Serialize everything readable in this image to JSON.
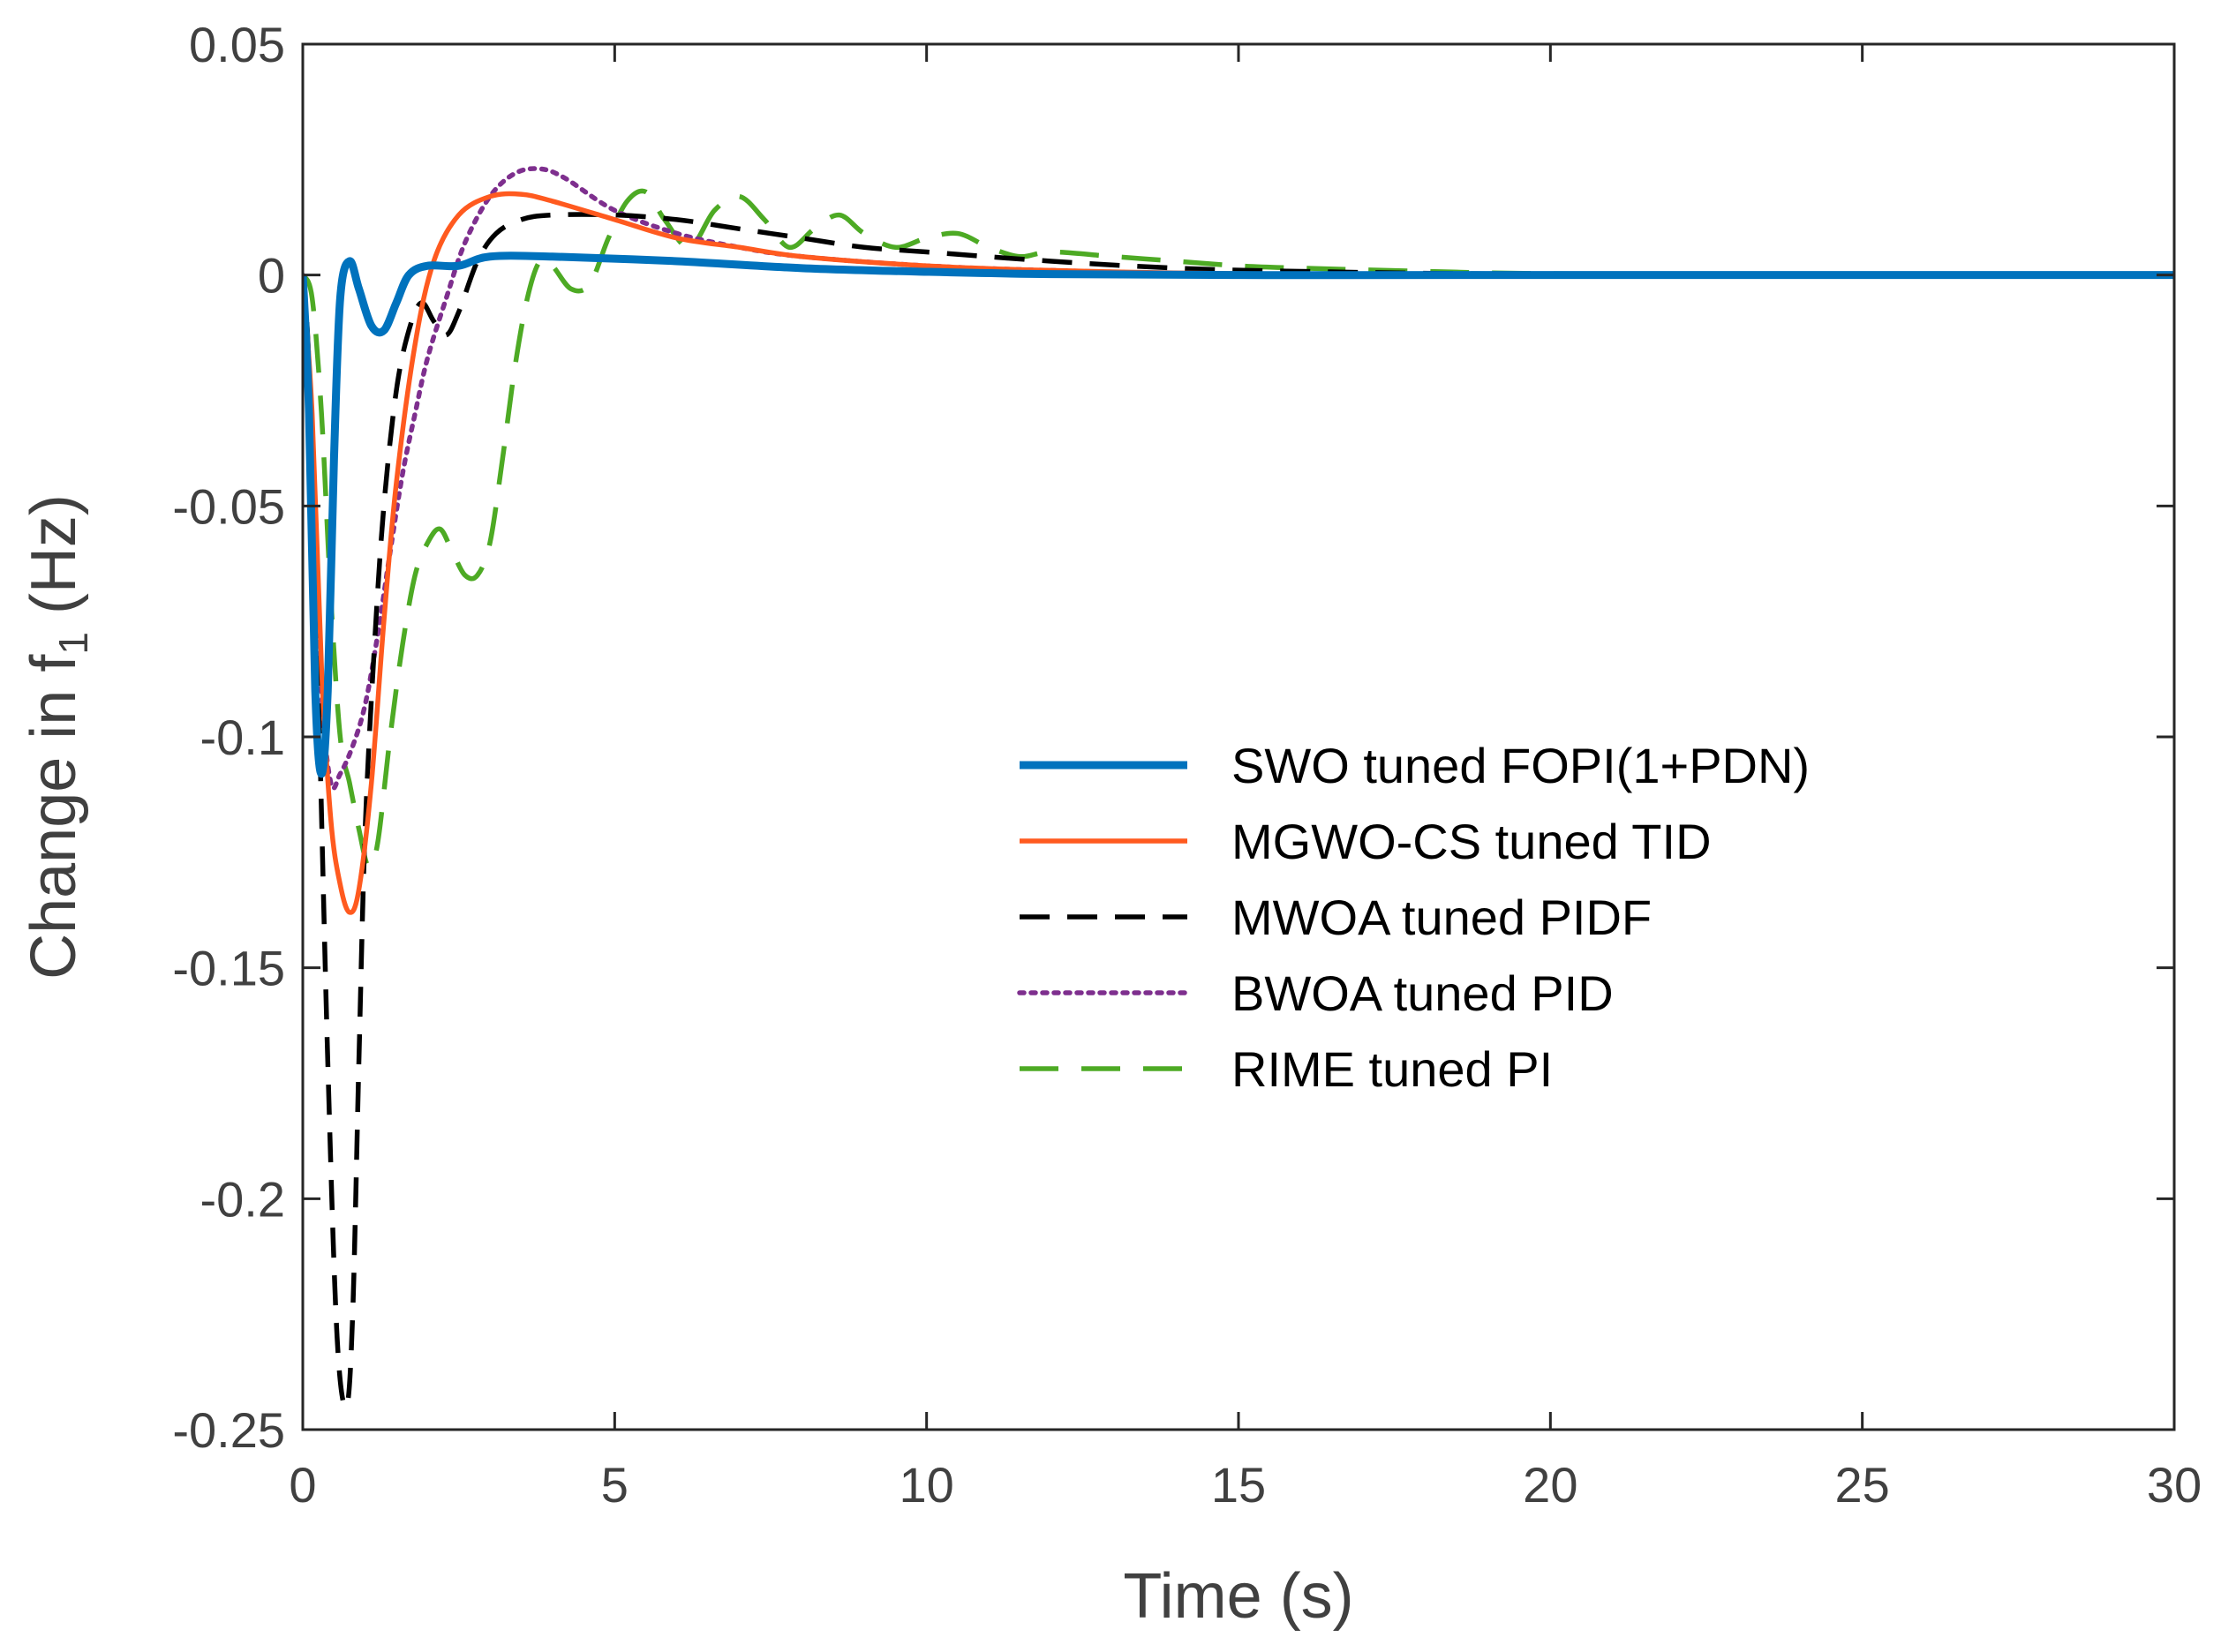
{
  "chart_data": {
    "type": "line",
    "title": "",
    "xlabel": "Time (s)",
    "ylabel_main": "Change in f",
    "ylabel_sub": "1",
    "ylabel_unit": " (Hz)",
    "xlim": [
      0,
      30
    ],
    "ylim": [
      -0.25,
      0.05
    ],
    "xticks": [
      0,
      5,
      10,
      15,
      20,
      25,
      30
    ],
    "xtick_labels": [
      "0",
      "5",
      "10",
      "15",
      "20",
      "25",
      "30"
    ],
    "yticks": [
      0.05,
      0,
      -0.05,
      -0.1,
      -0.15,
      -0.2,
      -0.25
    ],
    "ytick_labels": [
      "0.05",
      "0",
      "-0.05",
      "-0.1",
      "-0.15",
      "-0.2",
      "-0.25"
    ],
    "grid": false,
    "legend_position": "center-right",
    "series": [
      {
        "name": "SWO tuned FOPI(1+PDN)",
        "color": "#0072BD",
        "style": "solid",
        "width": "thick",
        "points": [
          [
            0,
            0
          ],
          [
            0.1,
            -0.03
          ],
          [
            0.2,
            -0.09
          ],
          [
            0.3,
            -0.108
          ],
          [
            0.4,
            -0.09
          ],
          [
            0.5,
            -0.04
          ],
          [
            0.6,
            -0.005
          ],
          [
            0.75,
            0.003
          ],
          [
            0.9,
            -0.003
          ],
          [
            1.1,
            -0.011
          ],
          [
            1.3,
            -0.012
          ],
          [
            1.5,
            -0.006
          ],
          [
            1.7,
            0.0
          ],
          [
            2.0,
            0.002
          ],
          [
            2.5,
            0.002
          ],
          [
            3.0,
            0.004
          ],
          [
            4.0,
            0.004
          ],
          [
            6.0,
            0.003
          ],
          [
            8.0,
            0.0015
          ],
          [
            10.0,
            0.0007
          ],
          [
            12.0,
            0.0002
          ],
          [
            15.0,
            0.0
          ],
          [
            20.0,
            0.0
          ],
          [
            30.0,
            0.0
          ]
        ]
      },
      {
        "name": "MGWO-CS tuned TID",
        "color": "#FF5A1F",
        "style": "solid",
        "width": "medium",
        "points": [
          [
            0,
            0
          ],
          [
            0.15,
            -0.03
          ],
          [
            0.3,
            -0.085
          ],
          [
            0.45,
            -0.118
          ],
          [
            0.6,
            -0.132
          ],
          [
            0.75,
            -0.138
          ],
          [
            0.9,
            -0.133
          ],
          [
            1.1,
            -0.11
          ],
          [
            1.3,
            -0.075
          ],
          [
            1.5,
            -0.045
          ],
          [
            1.8,
            -0.015
          ],
          [
            2.1,
            0.003
          ],
          [
            2.5,
            0.013
          ],
          [
            3.0,
            0.017
          ],
          [
            3.5,
            0.0175
          ],
          [
            4.0,
            0.016
          ],
          [
            5.0,
            0.012
          ],
          [
            6.0,
            0.008
          ],
          [
            7.0,
            0.006
          ],
          [
            8.0,
            0.004
          ],
          [
            10.0,
            0.002
          ],
          [
            12.0,
            0.001
          ],
          [
            15.0,
            0.0003
          ],
          [
            20.0,
            0.0
          ],
          [
            30.0,
            0.0
          ]
        ]
      },
      {
        "name": "MWOA tuned PIDF",
        "color": "#000000",
        "style": "dash",
        "width": "medium",
        "points": [
          [
            0,
            0
          ],
          [
            0.1,
            -0.02
          ],
          [
            0.25,
            -0.09
          ],
          [
            0.4,
            -0.17
          ],
          [
            0.55,
            -0.23
          ],
          [
            0.7,
            -0.245
          ],
          [
            0.8,
            -0.225
          ],
          [
            0.9,
            -0.17
          ],
          [
            1.0,
            -0.12
          ],
          [
            1.15,
            -0.08
          ],
          [
            1.3,
            -0.05
          ],
          [
            1.5,
            -0.025
          ],
          [
            1.7,
            -0.012
          ],
          [
            1.9,
            -0.006
          ],
          [
            2.1,
            -0.01
          ],
          [
            2.3,
            -0.013
          ],
          [
            2.5,
            -0.008
          ],
          [
            2.8,
            0.003
          ],
          [
            3.1,
            0.009
          ],
          [
            3.5,
            0.012
          ],
          [
            4.0,
            0.013
          ],
          [
            5.0,
            0.013
          ],
          [
            6.0,
            0.012
          ],
          [
            7.0,
            0.01
          ],
          [
            8.0,
            0.008
          ],
          [
            9.0,
            0.006
          ],
          [
            10.0,
            0.005
          ],
          [
            12.0,
            0.003
          ],
          [
            14.0,
            0.0015
          ],
          [
            16.0,
            0.0008
          ],
          [
            20.0,
            0.0002
          ],
          [
            30.0,
            0.0
          ]
        ]
      },
      {
        "name": "BWOA tuned PID",
        "color": "#7E2F8E",
        "style": "dot",
        "width": "medium",
        "points": [
          [
            0,
            0
          ],
          [
            0.15,
            -0.04
          ],
          [
            0.3,
            -0.09
          ],
          [
            0.45,
            -0.11
          ],
          [
            0.6,
            -0.108
          ],
          [
            0.8,
            -0.102
          ],
          [
            1.0,
            -0.093
          ],
          [
            1.2,
            -0.078
          ],
          [
            1.4,
            -0.06
          ],
          [
            1.6,
            -0.043
          ],
          [
            1.8,
            -0.03
          ],
          [
            2.0,
            -0.018
          ],
          [
            2.3,
            -0.005
          ],
          [
            2.6,
            0.007
          ],
          [
            3.0,
            0.017
          ],
          [
            3.4,
            0.022
          ],
          [
            3.8,
            0.023
          ],
          [
            4.2,
            0.021
          ],
          [
            5.0,
            0.014
          ],
          [
            6.0,
            0.009
          ],
          [
            7.0,
            0.006
          ],
          [
            8.0,
            0.004
          ],
          [
            10.0,
            0.002
          ],
          [
            12.0,
            0.001
          ],
          [
            15.0,
            0.0002
          ],
          [
            20.0,
            0.0
          ],
          [
            30.0,
            0.0
          ]
        ]
      },
      {
        "name": "RIME tuned PI",
        "color": "#4DAA24",
        "style": "longdash",
        "width": "medium",
        "points": [
          [
            0,
            0
          ],
          [
            0.15,
            -0.005
          ],
          [
            0.3,
            -0.03
          ],
          [
            0.45,
            -0.07
          ],
          [
            0.6,
            -0.1
          ],
          [
            0.75,
            -0.11
          ],
          [
            0.9,
            -0.12
          ],
          [
            1.05,
            -0.128
          ],
          [
            1.2,
            -0.123
          ],
          [
            1.4,
            -0.1
          ],
          [
            1.6,
            -0.08
          ],
          [
            1.8,
            -0.065
          ],
          [
            2.0,
            -0.058
          ],
          [
            2.2,
            -0.055
          ],
          [
            2.4,
            -0.06
          ],
          [
            2.6,
            -0.065
          ],
          [
            2.8,
            -0.065
          ],
          [
            3.0,
            -0.058
          ],
          [
            3.2,
            -0.04
          ],
          [
            3.4,
            -0.02
          ],
          [
            3.6,
            -0.005
          ],
          [
            3.8,
            0.003
          ],
          [
            4.0,
            0.002
          ],
          [
            4.3,
            -0.003
          ],
          [
            4.6,
            -0.002
          ],
          [
            4.9,
            0.008
          ],
          [
            5.2,
            0.016
          ],
          [
            5.5,
            0.018
          ],
          [
            5.8,
            0.012
          ],
          [
            6.2,
            0.006
          ],
          [
            6.6,
            0.014
          ],
          [
            7.0,
            0.017
          ],
          [
            7.4,
            0.012
          ],
          [
            7.8,
            0.006
          ],
          [
            8.2,
            0.01
          ],
          [
            8.6,
            0.013
          ],
          [
            9.0,
            0.009
          ],
          [
            9.5,
            0.006
          ],
          [
            10.0,
            0.008
          ],
          [
            10.5,
            0.009
          ],
          [
            11.0,
            0.006
          ],
          [
            11.5,
            0.004
          ],
          [
            12.0,
            0.005
          ],
          [
            13.0,
            0.004
          ],
          [
            14.0,
            0.003
          ],
          [
            15.0,
            0.002
          ],
          [
            16.0,
            0.0015
          ],
          [
            18.0,
            0.0008
          ],
          [
            20.0,
            0.0003
          ],
          [
            25.0,
            0.0
          ],
          [
            30.0,
            0.0
          ]
        ]
      }
    ]
  }
}
